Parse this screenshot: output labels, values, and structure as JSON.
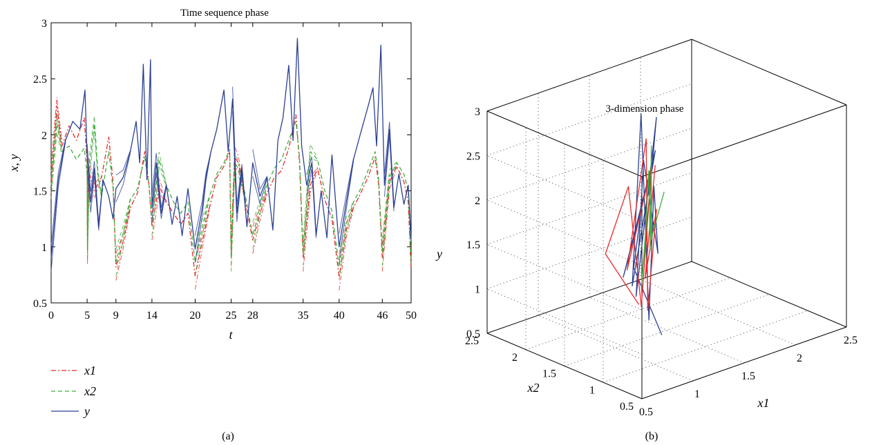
{
  "chart_data": [
    {
      "panel": "(a)",
      "type": "line",
      "title": "Time sequence phase",
      "xlabel": "t",
      "ylabel": "x, y",
      "xlim": [
        0,
        50
      ],
      "ylim": [
        0.5,
        3
      ],
      "xticks": [
        "0",
        "5",
        "9",
        "14",
        "20",
        "25",
        "28",
        "35",
        "40",
        "46",
        "50"
      ],
      "yticks": [
        "0.5",
        "1",
        "1.5",
        "2",
        "2.5",
        "3"
      ],
      "grid": false,
      "legend_position": "bottom-left",
      "colors": {
        "x1": "#e8282a",
        "x2": "#3fae3a",
        "y": "#2a3f93"
      },
      "segment_starts": [
        0,
        5,
        9,
        14,
        20,
        25,
        28,
        35,
        40,
        46
      ],
      "series": [
        {
          "name": "x1",
          "style": "dash-dot",
          "points": [
            [
              0,
              1.6
            ],
            [
              0.8,
              2.26
            ],
            [
              1.5,
              1.9
            ],
            [
              2.5,
              2.08
            ],
            [
              3.5,
              1.95
            ],
            [
              4.6,
              2.15
            ],
            [
              5,
              1.75
            ],
            [
              5.05,
              0.96
            ],
            [
              5.2,
              1.68
            ],
            [
              6,
              1.5
            ],
            [
              7,
              1.62
            ],
            [
              8,
              1.98
            ],
            [
              8.6,
              1.58
            ],
            [
              9,
              0.82
            ],
            [
              10,
              1.05
            ],
            [
              11,
              1.35
            ],
            [
              12,
              1.48
            ],
            [
              13,
              1.85
            ],
            [
              13.6,
              1.55
            ],
            [
              14,
              1.18
            ],
            [
              15,
              1.55
            ],
            [
              16,
              1.4
            ],
            [
              17,
              1.3
            ],
            [
              18,
              1.2
            ],
            [
              19,
              1.3
            ],
            [
              20,
              0.74
            ],
            [
              21,
              1.05
            ],
            [
              22,
              1.35
            ],
            [
              23,
              1.62
            ],
            [
              24,
              1.72
            ],
            [
              24.8,
              1.85
            ],
            [
              25,
              0.95
            ],
            [
              25.5,
              1.8
            ],
            [
              26,
              1.75
            ],
            [
              27,
              1.4
            ],
            [
              28,
              1.06
            ],
            [
              29,
              1.3
            ],
            [
              30,
              1.48
            ],
            [
              31,
              1.62
            ],
            [
              32,
              1.68
            ],
            [
              33,
              1.88
            ],
            [
              34,
              2.18
            ],
            [
              34.5,
              1.75
            ],
            [
              35,
              0.9
            ],
            [
              36,
              1.55
            ],
            [
              37,
              1.7
            ],
            [
              38,
              1.42
            ],
            [
              39,
              1.25
            ],
            [
              40,
              0.73
            ],
            [
              41,
              1.15
            ],
            [
              42,
              1.35
            ],
            [
              43,
              1.48
            ],
            [
              44,
              1.62
            ],
            [
              45,
              1.8
            ],
            [
              45.5,
              1.55
            ],
            [
              46,
              0.9
            ],
            [
              47,
              1.58
            ],
            [
              48,
              1.72
            ],
            [
              49,
              1.58
            ],
            [
              49.6,
              1.4
            ],
            [
              50,
              0.8
            ]
          ]
        },
        {
          "name": "x2",
          "style": "dashed",
          "points": [
            [
              0,
              1.55
            ],
            [
              0.8,
              2.1
            ],
            [
              1.5,
              1.85
            ],
            [
              2.5,
              1.9
            ],
            [
              3.5,
              1.78
            ],
            [
              4.6,
              1.88
            ],
            [
              5,
              1.65
            ],
            [
              5.05,
              1.0
            ],
            [
              5.3,
              1.7
            ],
            [
              6,
              2.1
            ],
            [
              6.5,
              1.65
            ],
            [
              7,
              1.45
            ],
            [
              8,
              1.85
            ],
            [
              8.6,
              1.52
            ],
            [
              9,
              0.86
            ],
            [
              10,
              1.12
            ],
            [
              11,
              1.42
            ],
            [
              12,
              1.52
            ],
            [
              13,
              1.8
            ],
            [
              13.6,
              1.55
            ],
            [
              14,
              1.22
            ],
            [
              15,
              1.78
            ],
            [
              16,
              1.55
            ],
            [
              17,
              1.4
            ],
            [
              18,
              1.3
            ],
            [
              19,
              1.4
            ],
            [
              20,
              0.86
            ],
            [
              21,
              1.18
            ],
            [
              22,
              1.45
            ],
            [
              23,
              1.65
            ],
            [
              24,
              1.75
            ],
            [
              24.8,
              1.87
            ],
            [
              25,
              0.9
            ],
            [
              25.5,
              1.75
            ],
            [
              26,
              1.7
            ],
            [
              27,
              1.45
            ],
            [
              28,
              1.1
            ],
            [
              29,
              1.35
            ],
            [
              30,
              1.55
            ],
            [
              31,
              1.7
            ],
            [
              32,
              1.78
            ],
            [
              33,
              1.95
            ],
            [
              34,
              2.12
            ],
            [
              34.5,
              1.8
            ],
            [
              35,
              0.95
            ],
            [
              36,
              1.85
            ],
            [
              37,
              1.78
            ],
            [
              38,
              1.5
            ],
            [
              39,
              1.32
            ],
            [
              40,
              0.82
            ],
            [
              41,
              1.2
            ],
            [
              42,
              1.4
            ],
            [
              43,
              1.52
            ],
            [
              44,
              1.68
            ],
            [
              45,
              1.85
            ],
            [
              45.5,
              1.6
            ],
            [
              46,
              0.95
            ],
            [
              47,
              1.62
            ],
            [
              48,
              1.75
            ],
            [
              49,
              1.65
            ],
            [
              49.6,
              1.5
            ],
            [
              50,
              0.85
            ]
          ]
        },
        {
          "name": "y",
          "style": "solid",
          "points": [
            [
              0,
              0.9
            ],
            [
              1,
              1.6
            ],
            [
              2,
              1.95
            ],
            [
              3,
              2.12
            ],
            [
              4,
              2.05
            ],
            [
              4.7,
              2.4
            ],
            [
              5,
              1.8
            ],
            [
              5.5,
              1.4
            ],
            [
              6,
              1.7
            ],
            [
              6.6,
              1.18
            ],
            [
              7.2,
              1.6
            ],
            [
              8,
              1.45
            ],
            [
              8.6,
              1.25
            ],
            [
              9,
              1.52
            ],
            [
              10,
              1.62
            ],
            [
              11,
              1.85
            ],
            [
              11.8,
              2.12
            ],
            [
              12.3,
              1.75
            ],
            [
              12.8,
              2.63
            ],
            [
              13.3,
              1.6
            ],
            [
              13.8,
              2.67
            ],
            [
              14,
              1.35
            ],
            [
              14.6,
              1.75
            ],
            [
              15.3,
              1.3
            ],
            [
              16,
              1.55
            ],
            [
              16.8,
              1.2
            ],
            [
              17.5,
              1.45
            ],
            [
              18.2,
              1.1
            ],
            [
              19,
              1.52
            ],
            [
              20,
              0.98
            ],
            [
              21,
              1.35
            ],
            [
              21.5,
              1.62
            ],
            [
              22.2,
              1.85
            ],
            [
              23,
              2.05
            ],
            [
              24,
              2.4
            ],
            [
              24.6,
              1.85
            ],
            [
              25.2,
              2.32
            ],
            [
              25.8,
              1.3
            ],
            [
              26.5,
              1.7
            ],
            [
              27.2,
              1.18
            ],
            [
              28,
              1.75
            ],
            [
              29,
              1.45
            ],
            [
              30,
              1.62
            ],
            [
              30.8,
              1.15
            ],
            [
              31.5,
              1.95
            ],
            [
              32.2,
              2.15
            ],
            [
              33,
              2.62
            ],
            [
              33.6,
              1.95
            ],
            [
              34.2,
              2.86
            ],
            [
              34.8,
              1.9
            ],
            [
              35.5,
              1.55
            ],
            [
              36.2,
              1.75
            ],
            [
              36.8,
              1.1
            ],
            [
              37.5,
              1.5
            ],
            [
              38.3,
              1.08
            ],
            [
              39,
              1.82
            ],
            [
              40,
              1.0
            ],
            [
              41,
              1.4
            ],
            [
              42,
              1.78
            ],
            [
              43,
              2.02
            ],
            [
              44,
              2.25
            ],
            [
              44.7,
              2.42
            ],
            [
              45.2,
              1.9
            ],
            [
              45.8,
              2.8
            ],
            [
              46.3,
              1.55
            ],
            [
              47,
              2.05
            ],
            [
              47.6,
              1.35
            ],
            [
              48.3,
              1.65
            ],
            [
              49,
              1.38
            ],
            [
              49.6,
              1.55
            ],
            [
              50,
              1.05
            ]
          ]
        }
      ]
    },
    {
      "panel": "(b)",
      "type": "line",
      "title": "3-dimension phase",
      "xlabel": "x1",
      "ylabel": "x2",
      "zlabel": "y",
      "xlim": [
        0.5,
        2.5
      ],
      "ylim": [
        0.5,
        2.5
      ],
      "zlim": [
        0.5,
        3
      ],
      "xticks": [
        "0.5",
        "1",
        "1.5",
        "2",
        "2.5"
      ],
      "yticks": [
        "0.5",
        "1",
        "1.5",
        "2",
        "2.5"
      ],
      "zticks": [
        "0.5",
        "1",
        "1.5",
        "2",
        "2.5",
        "3"
      ],
      "grid": true,
      "colors": {
        "red": "#e8282a",
        "green": "#3fae3a",
        "blue": "#2a3f93"
      },
      "trajectories": [
        {
          "color": "blue",
          "points": [
            [
              1.3,
              1.3,
              0.6
            ],
            [
              1.1,
              1.4,
              1.4
            ],
            [
              1.25,
              1.5,
              1.95
            ],
            [
              1.15,
              1.6,
              1.2
            ],
            [
              1.35,
              1.45,
              2.6
            ],
            [
              1.2,
              1.55,
              1.1
            ],
            [
              1.4,
              1.7,
              2.9
            ],
            [
              1.25,
              1.4,
              0.75
            ],
            [
              1.45,
              1.6,
              2.1
            ],
            [
              1.3,
              1.35,
              1.5
            ],
            [
              1.5,
              1.8,
              2.3
            ],
            [
              1.2,
              1.5,
              1.0
            ],
            [
              1.55,
              1.7,
              2.8
            ],
            [
              1.35,
              1.6,
              1.3
            ]
          ]
        },
        {
          "color": "red",
          "points": [
            [
              1.0,
              1.2,
              1.1
            ],
            [
              0.9,
              1.5,
              1.6
            ],
            [
              1.2,
              1.6,
              2.2
            ],
            [
              1.1,
              1.3,
              1.0
            ],
            [
              1.35,
              1.5,
              2.4
            ],
            [
              1.15,
              1.55,
              1.3
            ],
            [
              1.45,
              1.7,
              2.6
            ],
            [
              1.2,
              1.35,
              0.9
            ],
            [
              1.4,
              1.5,
              1.9
            ],
            [
              1.25,
              1.45,
              1.2
            ],
            [
              1.5,
              1.65,
              2.3
            ]
          ]
        },
        {
          "color": "green",
          "points": [
            [
              1.1,
              1.3,
              1.2
            ],
            [
              1.3,
              1.5,
              1.8
            ],
            [
              1.2,
              1.4,
              1.4
            ],
            [
              1.4,
              1.6,
              2.3
            ],
            [
              1.3,
              1.45,
              1.5
            ],
            [
              1.5,
              1.7,
              2.5
            ],
            [
              1.35,
              1.5,
              1.6
            ],
            [
              1.55,
              1.6,
              2.0
            ]
          ]
        }
      ]
    }
  ],
  "legend": {
    "x1": "x1",
    "x2": "x2",
    "y": "y"
  },
  "captions": {
    "a": "(a)",
    "b": "(b)"
  }
}
